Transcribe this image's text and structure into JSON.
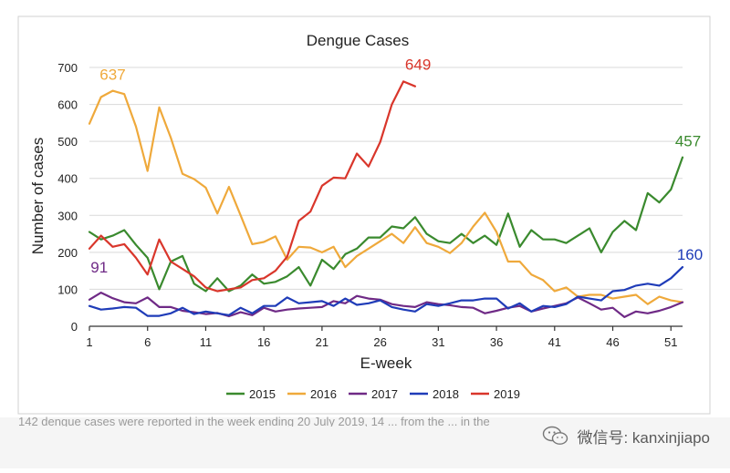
{
  "chart_data": {
    "type": "line",
    "title": "Dengue Cases",
    "xlabel": "E-week",
    "ylabel": "Number of cases",
    "xlim": [
      1,
      52
    ],
    "ylim": [
      0,
      700
    ],
    "x_ticks": [
      1,
      6,
      11,
      16,
      21,
      26,
      31,
      36,
      41,
      46,
      51
    ],
    "y_ticks": [
      0,
      100,
      200,
      300,
      400,
      500,
      600,
      700
    ],
    "grid": "horizontal",
    "legend": "bottom",
    "series": [
      {
        "name": "2015",
        "color": "#3a8a2e",
        "x": [
          1,
          2,
          3,
          4,
          5,
          6,
          7,
          8,
          9,
          10,
          11,
          12,
          13,
          14,
          15,
          16,
          17,
          18,
          19,
          20,
          21,
          22,
          23,
          24,
          25,
          26,
          27,
          28,
          29,
          30,
          31,
          32,
          33,
          34,
          35,
          36,
          37,
          38,
          39,
          40,
          41,
          42,
          43,
          44,
          45,
          46,
          47,
          48,
          49,
          50,
          51,
          52
        ],
        "values": [
          255,
          235,
          245,
          260,
          220,
          185,
          100,
          175,
          190,
          115,
          95,
          130,
          95,
          110,
          140,
          115,
          120,
          135,
          160,
          110,
          180,
          155,
          195,
          210,
          240,
          240,
          270,
          265,
          295,
          250,
          230,
          225,
          250,
          225,
          245,
          220,
          305,
          215,
          260,
          235,
          235,
          225,
          245,
          265,
          200,
          255,
          285,
          260,
          360,
          335,
          370,
          457
        ]
      },
      {
        "name": "2016",
        "color": "#efa93b",
        "x": [
          1,
          2,
          3,
          4,
          5,
          6,
          7,
          8,
          9,
          10,
          11,
          12,
          13,
          14,
          15,
          16,
          17,
          18,
          19,
          20,
          21,
          22,
          23,
          24,
          25,
          26,
          27,
          28,
          29,
          30,
          31,
          32,
          33,
          34,
          35,
          36,
          37,
          38,
          39,
          40,
          41,
          42,
          43,
          44,
          45,
          46,
          47,
          48,
          49,
          50,
          51,
          52
        ],
        "values": [
          548,
          620,
          637,
          628,
          540,
          420,
          592,
          510,
          412,
          398,
          375,
          305,
          377,
          300,
          222,
          228,
          243,
          180,
          215,
          213,
          200,
          215,
          160,
          190,
          210,
          230,
          250,
          225,
          268,
          225,
          215,
          198,
          225,
          270,
          307,
          255,
          175,
          175,
          140,
          125,
          95,
          105,
          80,
          85,
          85,
          75,
          80,
          85,
          60,
          80,
          70,
          65
        ]
      },
      {
        "name": "2017",
        "color": "#6f2a86",
        "x": [
          1,
          2,
          3,
          4,
          5,
          6,
          7,
          8,
          9,
          10,
          11,
          12,
          13,
          14,
          15,
          16,
          17,
          18,
          19,
          20,
          21,
          22,
          23,
          24,
          25,
          26,
          27,
          28,
          29,
          30,
          31,
          32,
          33,
          34,
          35,
          36,
          37,
          38,
          39,
          40,
          41,
          42,
          43,
          44,
          45,
          46,
          47,
          48,
          49,
          50,
          51,
          52
        ],
        "values": [
          72,
          91,
          76,
          65,
          62,
          78,
          52,
          52,
          42,
          38,
          33,
          36,
          27,
          38,
          30,
          50,
          40,
          45,
          48,
          50,
          52,
          68,
          62,
          82,
          75,
          72,
          60,
          55,
          52,
          65,
          60,
          57,
          52,
          50,
          35,
          42,
          50,
          55,
          40,
          48,
          55,
          62,
          78,
          62,
          45,
          50,
          25,
          40,
          35,
          42,
          52,
          65
        ]
      },
      {
        "name": "2018",
        "color": "#1f3cb8",
        "x": [
          1,
          2,
          3,
          4,
          5,
          6,
          7,
          8,
          9,
          10,
          11,
          12,
          13,
          14,
          15,
          16,
          17,
          18,
          19,
          20,
          21,
          22,
          23,
          24,
          25,
          26,
          27,
          28,
          29,
          30,
          31,
          32,
          33,
          34,
          35,
          36,
          37,
          38,
          39,
          40,
          41,
          42,
          43,
          44,
          45,
          46,
          47,
          48,
          49,
          50,
          51,
          52
        ],
        "values": [
          55,
          45,
          48,
          52,
          50,
          28,
          28,
          35,
          50,
          33,
          40,
          35,
          30,
          50,
          35,
          55,
          55,
          78,
          62,
          65,
          68,
          55,
          75,
          58,
          62,
          70,
          52,
          45,
          40,
          60,
          55,
          62,
          70,
          70,
          75,
          75,
          48,
          62,
          40,
          55,
          52,
          60,
          80,
          75,
          70,
          95,
          98,
          110,
          115,
          110,
          130,
          160
        ]
      },
      {
        "name": "2019",
        "color": "#d9362b",
        "x": [
          1,
          2,
          3,
          4,
          5,
          6,
          7,
          8,
          9,
          10,
          11,
          12,
          13,
          14,
          15,
          16,
          17,
          18,
          19,
          20,
          21,
          22,
          23,
          24,
          25,
          26,
          27,
          28,
          29
        ],
        "values": [
          210,
          245,
          215,
          222,
          185,
          140,
          235,
          175,
          155,
          135,
          105,
          95,
          100,
          105,
          125,
          130,
          150,
          188,
          285,
          310,
          380,
          402,
          400,
          467,
          432,
          498,
          600,
          662,
          649
        ]
      }
    ],
    "annotations": [
      {
        "text": "637",
        "series": "2016"
      },
      {
        "text": "649",
        "series": "2019"
      },
      {
        "text": "91",
        "series": "2017"
      },
      {
        "text": "457",
        "series": "2015"
      },
      {
        "text": "160",
        "series": "2018"
      }
    ]
  },
  "footnote": "142 dengue cases were reported in the week ending 20 July 2019, 14 ... from the ... in the",
  "watermark": {
    "icon": "wechat-icon",
    "text": "微信号: kanxinjiapo"
  }
}
